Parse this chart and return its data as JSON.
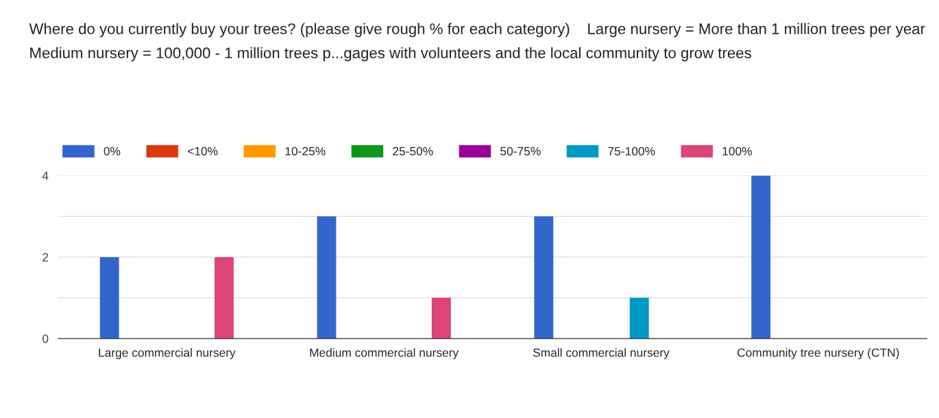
{
  "chart_data": {
    "type": "bar",
    "title": "Where do you currently buy your trees? (please give rough % for each category)    Large nursery = More than 1 million trees per year Medium nursery = 100,000 - 1 million trees p...gages with volunteers and the local community to grow trees",
    "categories": [
      "Large commercial nursery",
      "Medium commercial nursery",
      "Small commercial nursery",
      "Community tree nursery (CTN)"
    ],
    "series": [
      {
        "name": "0%",
        "color": "#3366cc",
        "values": [
          2,
          3,
          3,
          4
        ]
      },
      {
        "name": "<10%",
        "color": "#dc3912",
        "values": [
          0,
          0,
          0,
          0
        ]
      },
      {
        "name": "10-25%",
        "color": "#ff9900",
        "values": [
          0,
          0,
          0,
          0
        ]
      },
      {
        "name": "25-50%",
        "color": "#109618",
        "values": [
          0,
          0,
          0,
          0
        ]
      },
      {
        "name": "50-75%",
        "color": "#990099",
        "values": [
          0,
          0,
          0,
          0
        ]
      },
      {
        "name": "75-100%",
        "color": "#0099c6",
        "values": [
          0,
          0,
          1,
          0
        ]
      },
      {
        "name": "100%",
        "color": "#dd4477",
        "values": [
          2,
          1,
          0,
          0
        ]
      }
    ],
    "ylim": [
      0,
      4
    ],
    "yticks": [
      0,
      {
        "value": 1,
        "label": null
      },
      2,
      {
        "value": 3,
        "label": null
      },
      4
    ],
    "grid": "y",
    "legend": "top left"
  }
}
